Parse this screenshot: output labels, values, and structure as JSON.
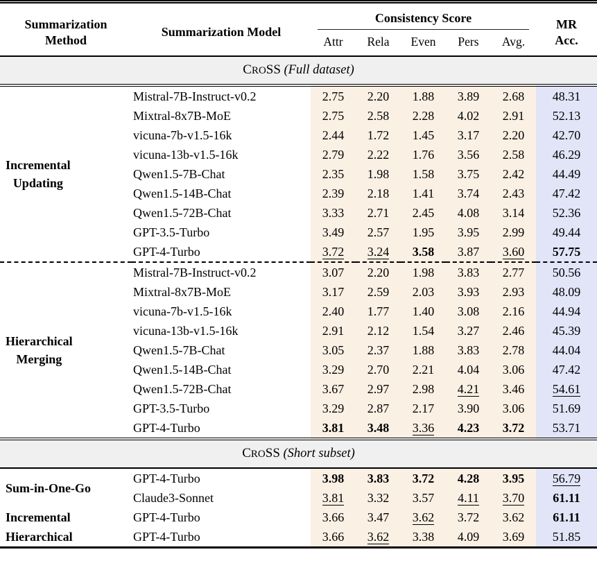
{
  "table": {
    "header": {
      "method": [
        "Summarization",
        "Method"
      ],
      "model": "Summarization Model",
      "consistency": "Consistency Score",
      "subcols": [
        "Attr",
        "Rela",
        "Even",
        "Pers",
        "Avg."
      ],
      "mr": [
        "MR",
        "Acc."
      ]
    },
    "colors": {
      "consistency_bg": "#faf0e4",
      "mr_bg": "#e2e4f8",
      "band_bg": "#f0f0f0"
    },
    "sections": [
      {
        "band": {
          "pre": "C",
          "sc": "RO",
          "post": "SS",
          "note": " (Full dataset)"
        },
        "groups": [
          {
            "method_lines": [
              "Incremental",
              "Updating"
            ],
            "dashed_top": false,
            "rows": [
              {
                "model": "Mistral-7B-Instruct-v0.2",
                "scores": [
                  {
                    "v": "2.75"
                  },
                  {
                    "v": "2.20"
                  },
                  {
                    "v": "1.88"
                  },
                  {
                    "v": "3.89"
                  },
                  {
                    "v": "2.68"
                  }
                ],
                "mr": {
                  "v": "48.31"
                }
              },
              {
                "model": "Mixtral-8x7B-MoE",
                "scores": [
                  {
                    "v": "2.75"
                  },
                  {
                    "v": "2.58"
                  },
                  {
                    "v": "2.28"
                  },
                  {
                    "v": "4.02"
                  },
                  {
                    "v": "2.91"
                  }
                ],
                "mr": {
                  "v": "52.13"
                }
              },
              {
                "model": "vicuna-7b-v1.5-16k",
                "scores": [
                  {
                    "v": "2.44"
                  },
                  {
                    "v": "1.72"
                  },
                  {
                    "v": "1.45"
                  },
                  {
                    "v": "3.17"
                  },
                  {
                    "v": "2.20"
                  }
                ],
                "mr": {
                  "v": "42.70"
                }
              },
              {
                "model": "vicuna-13b-v1.5-16k",
                "scores": [
                  {
                    "v": "2.79"
                  },
                  {
                    "v": "2.22"
                  },
                  {
                    "v": "1.76"
                  },
                  {
                    "v": "3.56"
                  },
                  {
                    "v": "2.58"
                  }
                ],
                "mr": {
                  "v": "46.29"
                }
              },
              {
                "model": "Qwen1.5-7B-Chat",
                "scores": [
                  {
                    "v": "2.35"
                  },
                  {
                    "v": "1.98"
                  },
                  {
                    "v": "1.58"
                  },
                  {
                    "v": "3.75"
                  },
                  {
                    "v": "2.42"
                  }
                ],
                "mr": {
                  "v": "44.49"
                }
              },
              {
                "model": "Qwen1.5-14B-Chat",
                "scores": [
                  {
                    "v": "2.39"
                  },
                  {
                    "v": "2.18"
                  },
                  {
                    "v": "1.41"
                  },
                  {
                    "v": "3.74"
                  },
                  {
                    "v": "2.43"
                  }
                ],
                "mr": {
                  "v": "47.42"
                }
              },
              {
                "model": "Qwen1.5-72B-Chat",
                "scores": [
                  {
                    "v": "3.33"
                  },
                  {
                    "v": "2.71"
                  },
                  {
                    "v": "2.45"
                  },
                  {
                    "v": "4.08"
                  },
                  {
                    "v": "3.14"
                  }
                ],
                "mr": {
                  "v": "52.36"
                }
              },
              {
                "model": "GPT-3.5-Turbo",
                "scores": [
                  {
                    "v": "3.49"
                  },
                  {
                    "v": "2.57"
                  },
                  {
                    "v": "1.95"
                  },
                  {
                    "v": "3.95"
                  },
                  {
                    "v": "2.99"
                  }
                ],
                "mr": {
                  "v": "49.44"
                }
              },
              {
                "model": "GPT-4-Turbo",
                "scores": [
                  {
                    "v": "3.72",
                    "s": "u"
                  },
                  {
                    "v": "3.24",
                    "s": "u"
                  },
                  {
                    "v": "3.58",
                    "s": "b"
                  },
                  {
                    "v": "3.87"
                  },
                  {
                    "v": "3.60",
                    "s": "u"
                  }
                ],
                "mr": {
                  "v": "57.75",
                  "s": "b"
                }
              }
            ]
          },
          {
            "method_lines": [
              "Hierarchical",
              "Merging"
            ],
            "dashed_top": true,
            "rows": [
              {
                "model": "Mistral-7B-Instruct-v0.2",
                "scores": [
                  {
                    "v": "3.07"
                  },
                  {
                    "v": "2.20"
                  },
                  {
                    "v": "1.98"
                  },
                  {
                    "v": "3.83"
                  },
                  {
                    "v": "2.77"
                  }
                ],
                "mr": {
                  "v": "50.56"
                }
              },
              {
                "model": "Mixtral-8x7B-MoE",
                "scores": [
                  {
                    "v": "3.17"
                  },
                  {
                    "v": "2.59"
                  },
                  {
                    "v": "2.03"
                  },
                  {
                    "v": "3.93"
                  },
                  {
                    "v": "2.93"
                  }
                ],
                "mr": {
                  "v": "48.09"
                }
              },
              {
                "model": "vicuna-7b-v1.5-16k",
                "scores": [
                  {
                    "v": "2.40"
                  },
                  {
                    "v": "1.77"
                  },
                  {
                    "v": "1.40"
                  },
                  {
                    "v": "3.08"
                  },
                  {
                    "v": "2.16"
                  }
                ],
                "mr": {
                  "v": "44.94"
                }
              },
              {
                "model": "vicuna-13b-v1.5-16k",
                "scores": [
                  {
                    "v": "2.91"
                  },
                  {
                    "v": "2.12"
                  },
                  {
                    "v": "1.54"
                  },
                  {
                    "v": "3.27"
                  },
                  {
                    "v": "2.46"
                  }
                ],
                "mr": {
                  "v": "45.39"
                }
              },
              {
                "model": "Qwen1.5-7B-Chat",
                "scores": [
                  {
                    "v": "3.05"
                  },
                  {
                    "v": "2.37"
                  },
                  {
                    "v": "1.88"
                  },
                  {
                    "v": "3.83"
                  },
                  {
                    "v": "2.78"
                  }
                ],
                "mr": {
                  "v": "44.04"
                }
              },
              {
                "model": "Qwen1.5-14B-Chat",
                "scores": [
                  {
                    "v": "3.29"
                  },
                  {
                    "v": "2.70"
                  },
                  {
                    "v": "2.21"
                  },
                  {
                    "v": "4.04"
                  },
                  {
                    "v": "3.06"
                  }
                ],
                "mr": {
                  "v": "47.42"
                }
              },
              {
                "model": "Qwen1.5-72B-Chat",
                "scores": [
                  {
                    "v": "3.67"
                  },
                  {
                    "v": "2.97"
                  },
                  {
                    "v": "2.98"
                  },
                  {
                    "v": "4.21",
                    "s": "u"
                  },
                  {
                    "v": "3.46"
                  }
                ],
                "mr": {
                  "v": "54.61",
                  "s": "u"
                }
              },
              {
                "model": "GPT-3.5-Turbo",
                "scores": [
                  {
                    "v": "3.29"
                  },
                  {
                    "v": "2.87"
                  },
                  {
                    "v": "2.17"
                  },
                  {
                    "v": "3.90"
                  },
                  {
                    "v": "3.06"
                  }
                ],
                "mr": {
                  "v": "51.69"
                }
              },
              {
                "model": "GPT-4-Turbo",
                "scores": [
                  {
                    "v": "3.81",
                    "s": "b"
                  },
                  {
                    "v": "3.48",
                    "s": "b"
                  },
                  {
                    "v": "3.36",
                    "s": "u"
                  },
                  {
                    "v": "4.23",
                    "s": "b"
                  },
                  {
                    "v": "3.72",
                    "s": "b"
                  }
                ],
                "mr": {
                  "v": "53.71"
                }
              }
            ]
          }
        ]
      },
      {
        "band": {
          "pre": "C",
          "sc": "RO",
          "post": "SS",
          "note": " (Short subset)"
        },
        "groups": [
          {
            "method_lines": [
              "Sum-in-One-Go"
            ],
            "dashed_top": false,
            "rows": [
              {
                "model": "GPT-4-Turbo",
                "scores": [
                  {
                    "v": "3.98",
                    "s": "b"
                  },
                  {
                    "v": "3.83",
                    "s": "b"
                  },
                  {
                    "v": "3.72",
                    "s": "b"
                  },
                  {
                    "v": "4.28",
                    "s": "b"
                  },
                  {
                    "v": "3.95",
                    "s": "b"
                  }
                ],
                "mr": {
                  "v": "56.79",
                  "s": "u"
                }
              },
              {
                "model": "Claude3-Sonnet",
                "scores": [
                  {
                    "v": "3.81",
                    "s": "u"
                  },
                  {
                    "v": "3.32"
                  },
                  {
                    "v": "3.57"
                  },
                  {
                    "v": "4.11",
                    "s": "u"
                  },
                  {
                    "v": "3.70",
                    "s": "u"
                  }
                ],
                "mr": {
                  "v": "61.11",
                  "s": "b"
                }
              }
            ]
          },
          {
            "method_lines": [
              "Incremental"
            ],
            "dashed_top": false,
            "rows": [
              {
                "model": "GPT-4-Turbo",
                "scores": [
                  {
                    "v": "3.66"
                  },
                  {
                    "v": "3.47"
                  },
                  {
                    "v": "3.62",
                    "s": "u"
                  },
                  {
                    "v": "3.72"
                  },
                  {
                    "v": "3.62"
                  }
                ],
                "mr": {
                  "v": "61.11",
                  "s": "b"
                }
              }
            ]
          },
          {
            "method_lines": [
              "Hierarchical"
            ],
            "dashed_top": false,
            "rows": [
              {
                "model": "GPT-4-Turbo",
                "scores": [
                  {
                    "v": "3.66"
                  },
                  {
                    "v": "3.62",
                    "s": "u"
                  },
                  {
                    "v": "3.38"
                  },
                  {
                    "v": "4.09"
                  },
                  {
                    "v": "3.69"
                  }
                ],
                "mr": {
                  "v": "51.85"
                }
              }
            ]
          }
        ]
      }
    ]
  }
}
